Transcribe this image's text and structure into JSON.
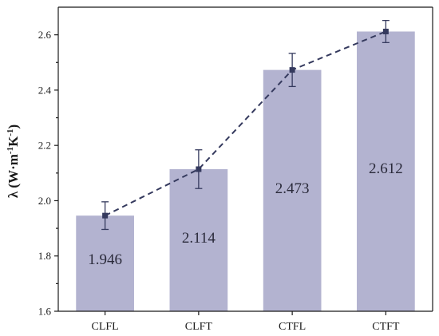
{
  "chart_data": {
    "type": "bar",
    "categories": [
      "CLFL",
      "CLFT",
      "CTFL",
      "CTFT"
    ],
    "values": [
      1.946,
      2.114,
      2.473,
      2.612
    ],
    "value_labels": [
      "1.946",
      "2.114",
      "2.473",
      "2.612"
    ],
    "errors": [
      0.05,
      0.07,
      0.06,
      0.04
    ],
    "overlay": "dashed-line-with-square-markers",
    "ylabel": {
      "prefix": "λ (W·m",
      "sup1": "-1",
      "mid": "K",
      "sup2": "-1",
      "suffix": ")"
    },
    "ylim": [
      1.6,
      2.7
    ],
    "yticks": [
      "1.6",
      "1.8",
      "2.0",
      "2.2",
      "2.4",
      "2.6"
    ],
    "title": "",
    "xlabel": "",
    "colors": {
      "bar": "#b3b3d0",
      "line": "#353a5e",
      "marker": "#353a5e",
      "axis": "#1a1a1a"
    }
  }
}
